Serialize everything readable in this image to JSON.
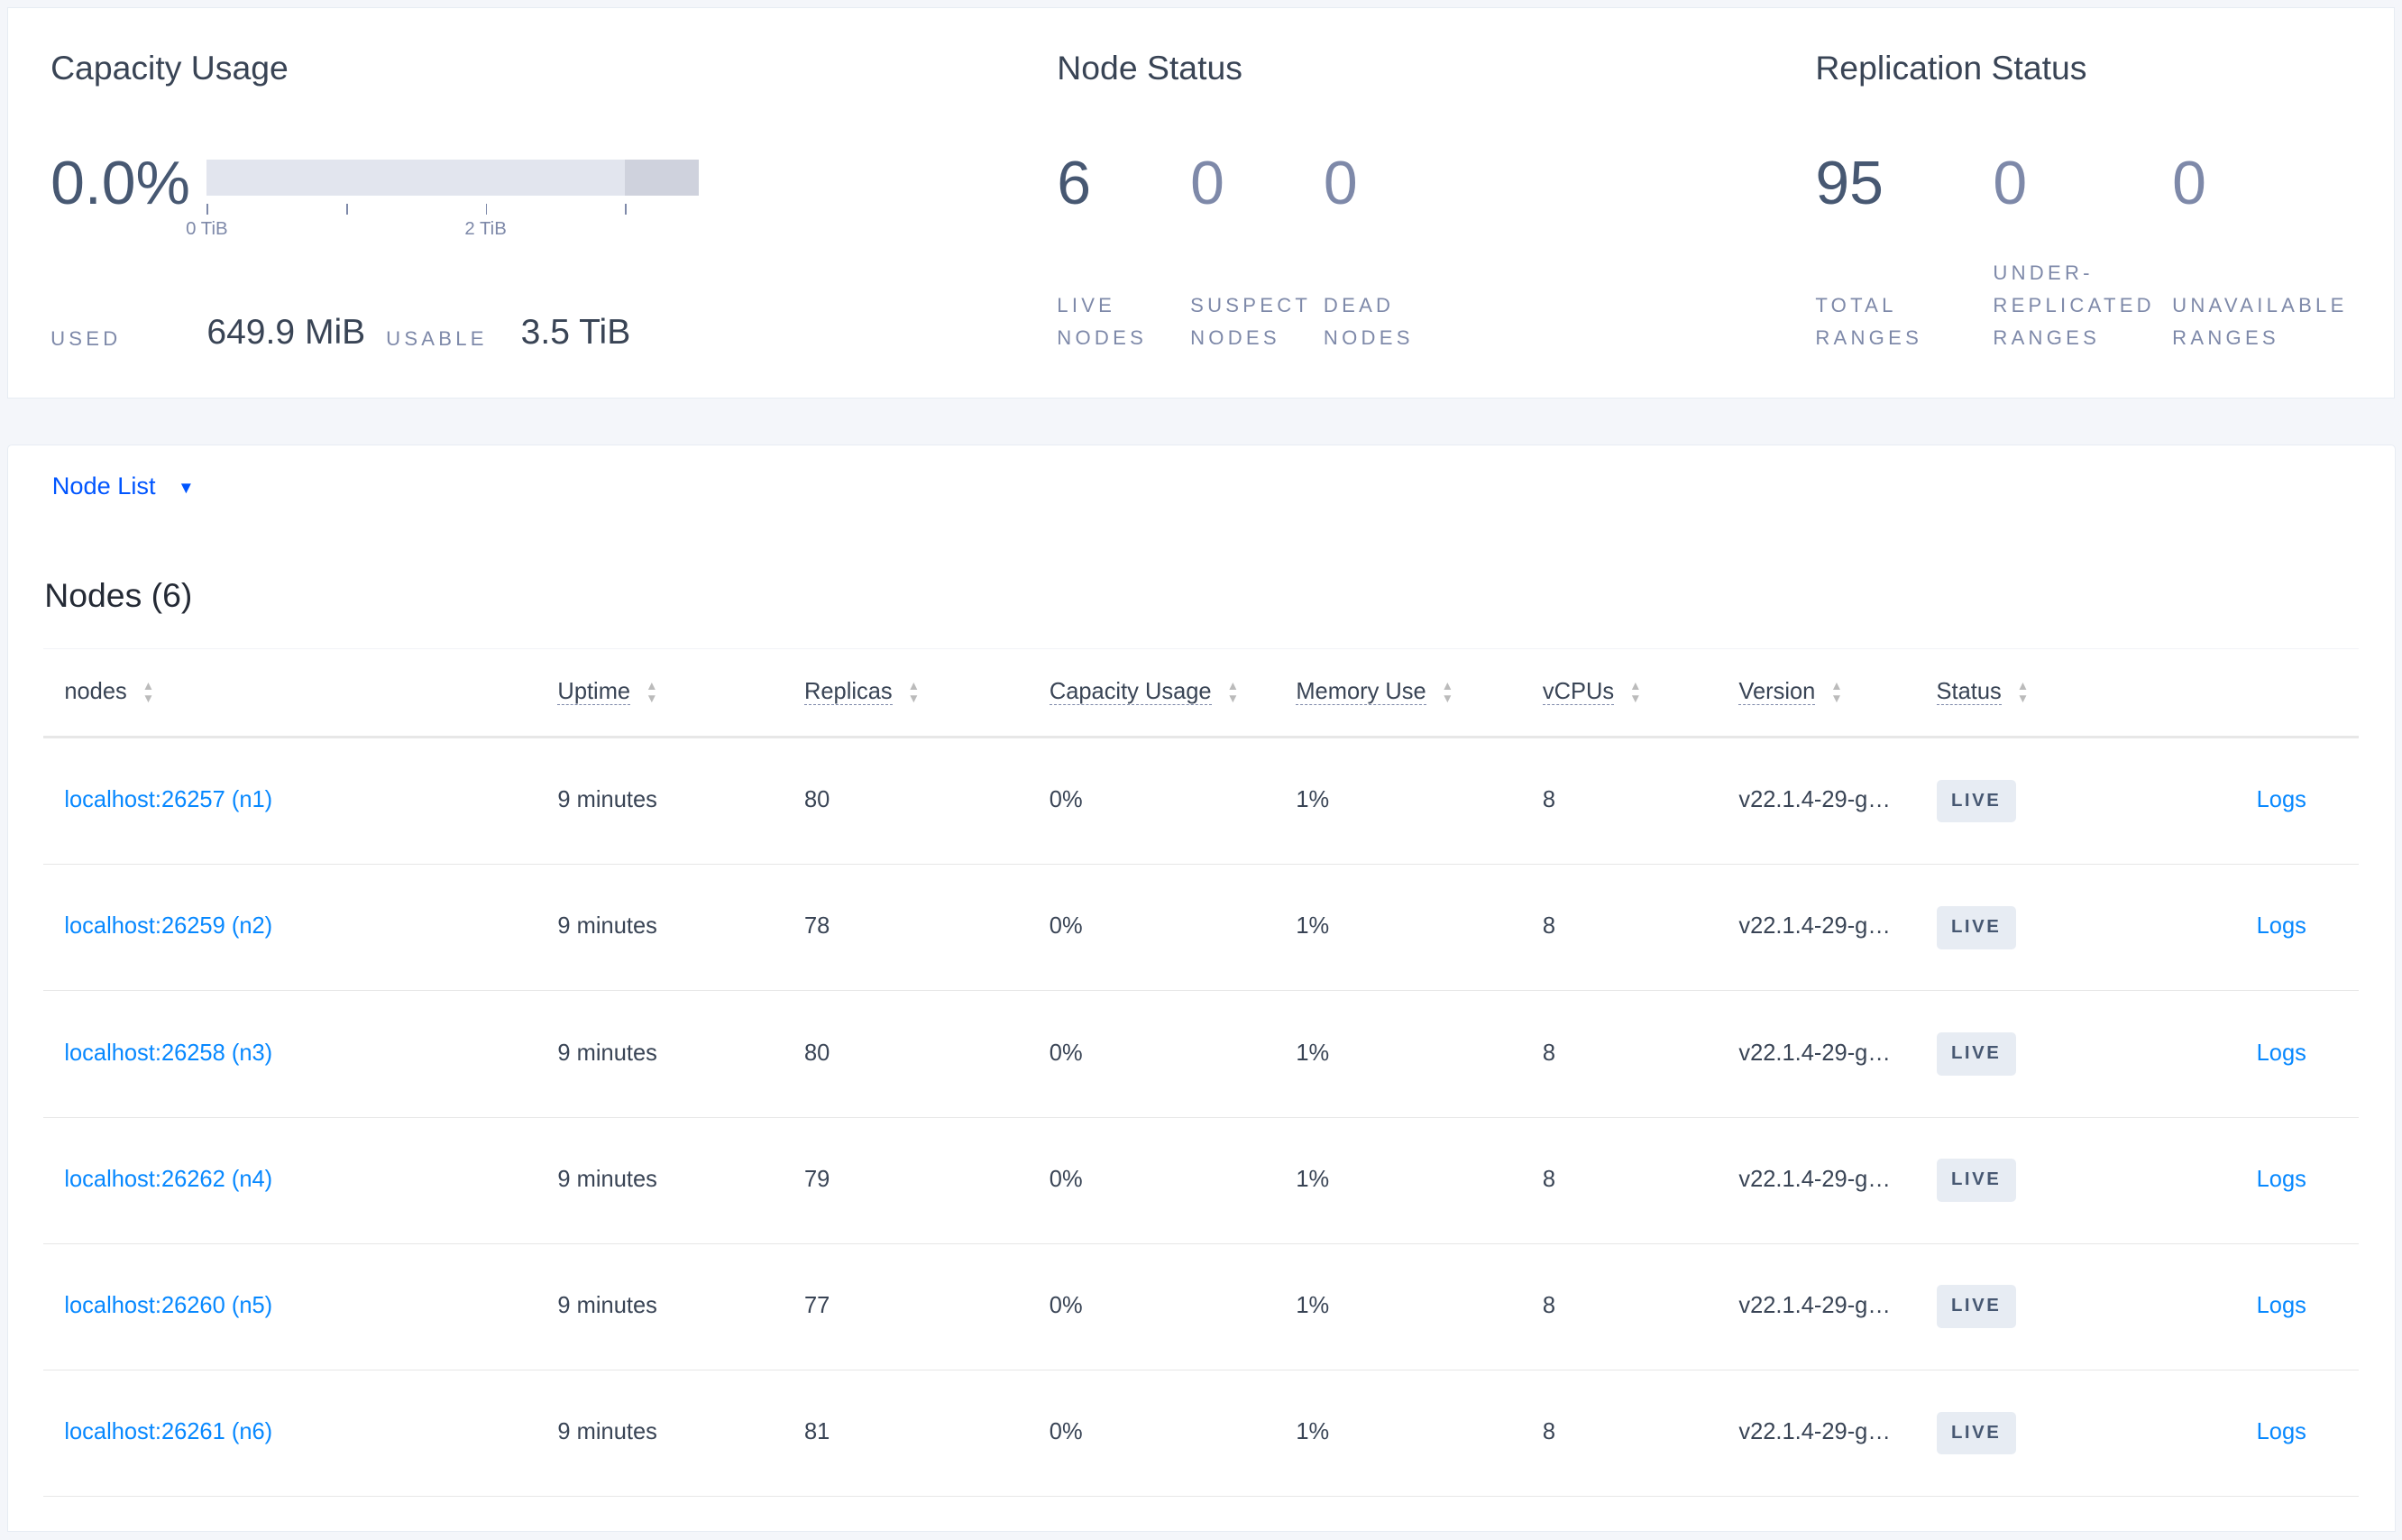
{
  "capacity": {
    "title": "Capacity Usage",
    "percent": "0.0%",
    "used_fraction": 0.0,
    "tick_labels": [
      "0 TiB",
      "2 TiB"
    ],
    "used_label": "USED",
    "used_value": "649.9 MiB",
    "usable_label": "USABLE",
    "usable_value": "3.5 TiB"
  },
  "node_status": {
    "title": "Node Status",
    "stats": [
      {
        "value": "6",
        "line1": "LIVE",
        "line2": "NODES"
      },
      {
        "value": "0",
        "line1": "SUSPECT",
        "line2": "NODES"
      },
      {
        "value": "0",
        "line1": "DEAD",
        "line2": "NODES"
      }
    ]
  },
  "replication_status": {
    "title": "Replication Status",
    "stats": [
      {
        "value": "95",
        "line1": "TOTAL",
        "line2": "RANGES"
      },
      {
        "value": "0",
        "line0": "UNDER-",
        "line1": "REPLICATED",
        "line2": "RANGES"
      },
      {
        "value": "0",
        "line1": "UNAVAILABLE",
        "line2": "RANGES"
      }
    ]
  },
  "view_selector": {
    "label": "Node List",
    "icon": "caret-down-icon"
  },
  "nodes_title": "Nodes (6)",
  "table": {
    "columns": [
      "nodes",
      "Uptime",
      "Replicas",
      "Capacity Usage",
      "Memory Use",
      "vCPUs",
      "Version",
      "Status"
    ],
    "rows": [
      {
        "node": "localhost:26257 (n1)",
        "uptime": "9 minutes",
        "replicas": "80",
        "capacity": "0%",
        "memory": "1%",
        "vcpus": "8",
        "version": "v22.1.4-29-g…",
        "status": "LIVE",
        "logs": "Logs"
      },
      {
        "node": "localhost:26259 (n2)",
        "uptime": "9 minutes",
        "replicas": "78",
        "capacity": "0%",
        "memory": "1%",
        "vcpus": "8",
        "version": "v22.1.4-29-g…",
        "status": "LIVE",
        "logs": "Logs"
      },
      {
        "node": "localhost:26258 (n3)",
        "uptime": "9 minutes",
        "replicas": "80",
        "capacity": "0%",
        "memory": "1%",
        "vcpus": "8",
        "version": "v22.1.4-29-g…",
        "status": "LIVE",
        "logs": "Logs"
      },
      {
        "node": "localhost:26262 (n4)",
        "uptime": "9 minutes",
        "replicas": "79",
        "capacity": "0%",
        "memory": "1%",
        "vcpus": "8",
        "version": "v22.1.4-29-g…",
        "status": "LIVE",
        "logs": "Logs"
      },
      {
        "node": "localhost:26260 (n5)",
        "uptime": "9 minutes",
        "replicas": "77",
        "capacity": "0%",
        "memory": "1%",
        "vcpus": "8",
        "version": "v22.1.4-29-g…",
        "status": "LIVE",
        "logs": "Logs"
      },
      {
        "node": "localhost:26261 (n6)",
        "uptime": "9 minutes",
        "replicas": "81",
        "capacity": "0%",
        "memory": "1%",
        "vcpus": "8",
        "version": "v22.1.4-29-g…",
        "status": "LIVE",
        "logs": "Logs"
      }
    ]
  },
  "colors": {
    "link": "#0788ff",
    "accent": "#0055ff",
    "text": "#394455",
    "muted": "#7e89a9",
    "badge_bg": "#e7ecf3"
  }
}
